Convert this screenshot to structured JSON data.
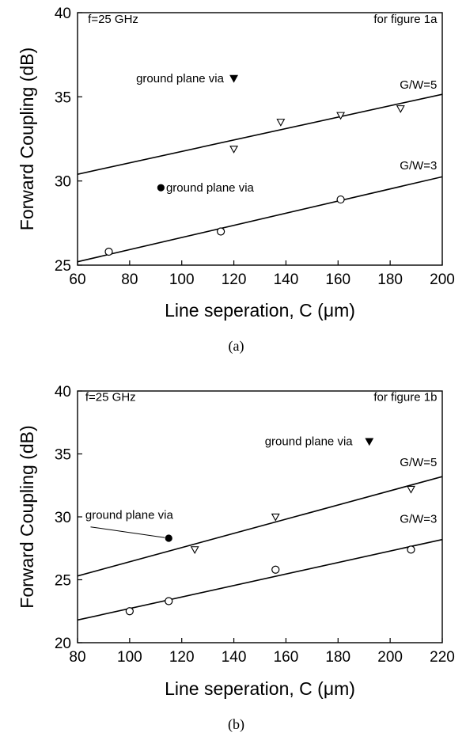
{
  "chart_data": [
    {
      "type": "scatter",
      "caption": "(a)",
      "xlabel": "Line seperation, C (μm)",
      "ylabel": "Forward Coupling (dB)",
      "xlim": [
        60,
        200
      ],
      "ylim": [
        25,
        40
      ],
      "xticks": [
        "60",
        "80",
        "100",
        "120",
        "140",
        "160",
        "180",
        "200"
      ],
      "yticks": [
        "25",
        "30",
        "35",
        "40"
      ],
      "grid": false,
      "annotations": [
        {
          "key": "freq",
          "text": "f=25 GHz",
          "x": 64,
          "y": 39.4
        },
        {
          "key": "fig",
          "text": "for figure 1a",
          "x": 198,
          "y": 39.4
        },
        {
          "key": "gw5",
          "text": "G/W=5",
          "x": 198,
          "y": 35.4
        },
        {
          "key": "gw3",
          "text": "G/W=3",
          "x": 198,
          "y": 30.6
        },
        {
          "key": "via5",
          "text": "ground plane via",
          "x": 118,
          "y": 36.1
        },
        {
          "key": "via3",
          "text": "ground plane via",
          "x": 94,
          "y": 29.6
        }
      ],
      "series": [
        {
          "name": "G/W=5",
          "marker": "open-triangle-down",
          "points": [
            [
              120,
              31.9
            ],
            [
              138,
              33.5
            ],
            [
              161,
              33.9
            ],
            [
              184,
              34.3
            ]
          ],
          "fit": [
            [
              60,
              30.4
            ],
            [
              200,
              35.15
            ]
          ]
        },
        {
          "name": "G/W=3",
          "marker": "open-circle",
          "points": [
            [
              72,
              25.8
            ],
            [
              115,
              27.0
            ],
            [
              161,
              28.9
            ]
          ],
          "fit": [
            [
              60,
              25.2
            ],
            [
              200,
              30.25
            ]
          ]
        },
        {
          "name": "ground plane via",
          "marker": "filled-triangle-down",
          "points": [
            [
              120,
              36.1
            ]
          ]
        },
        {
          "name": "ground plane via",
          "marker": "filled-circle",
          "points": [
            [
              92,
              29.6
            ]
          ]
        }
      ]
    },
    {
      "type": "scatter",
      "caption": "(b)",
      "xlabel": "Line seperation, C (μm)",
      "ylabel": "Forward Coupling (dB)",
      "xlim": [
        80,
        220
      ],
      "ylim": [
        20,
        40
      ],
      "xticks": [
        "80",
        "100",
        "120",
        "140",
        "160",
        "180",
        "200",
        "220"
      ],
      "yticks": [
        "20",
        "25",
        "30",
        "35",
        "40"
      ],
      "grid": false,
      "annotations": [
        {
          "key": "freq",
          "text": "f=25 GHz",
          "x": 83,
          "y": 39.2
        },
        {
          "key": "fig",
          "text": "for figure 1b",
          "x": 218,
          "y": 39.2
        },
        {
          "key": "via_top",
          "text": "ground plane via",
          "x": 188,
          "y": 36.0
        },
        {
          "key": "gw5",
          "text": "G/W=5",
          "x": 218,
          "y": 33.9
        },
        {
          "key": "gw3",
          "text": "G/W=3",
          "x": 218,
          "y": 29.4
        },
        {
          "key": "via_left",
          "text": "ground plane via",
          "x": 83,
          "y": 29.6
        }
      ],
      "series": [
        {
          "name": "G/W=5",
          "marker": "open-triangle-down",
          "points": [
            [
              125,
              27.4
            ],
            [
              156,
              30.0
            ],
            [
              208,
              32.2
            ]
          ],
          "fit": [
            [
              80,
              25.3
            ],
            [
              220,
              33.2
            ]
          ]
        },
        {
          "name": "G/W=3",
          "marker": "open-circle",
          "points": [
            [
              100,
              22.5
            ],
            [
              115,
              23.3
            ],
            [
              156,
              25.8
            ],
            [
              208,
              27.4
            ]
          ],
          "fit": [
            [
              80,
              21.8
            ],
            [
              220,
              28.2
            ]
          ]
        },
        {
          "name": "ground plane via",
          "marker": "filled-triangle-down",
          "points": [
            [
              192,
              36.0
            ]
          ]
        },
        {
          "name": "ground plane via",
          "marker": "filled-circle",
          "points": [
            [
              115,
              28.3
            ]
          ]
        }
      ]
    }
  ]
}
